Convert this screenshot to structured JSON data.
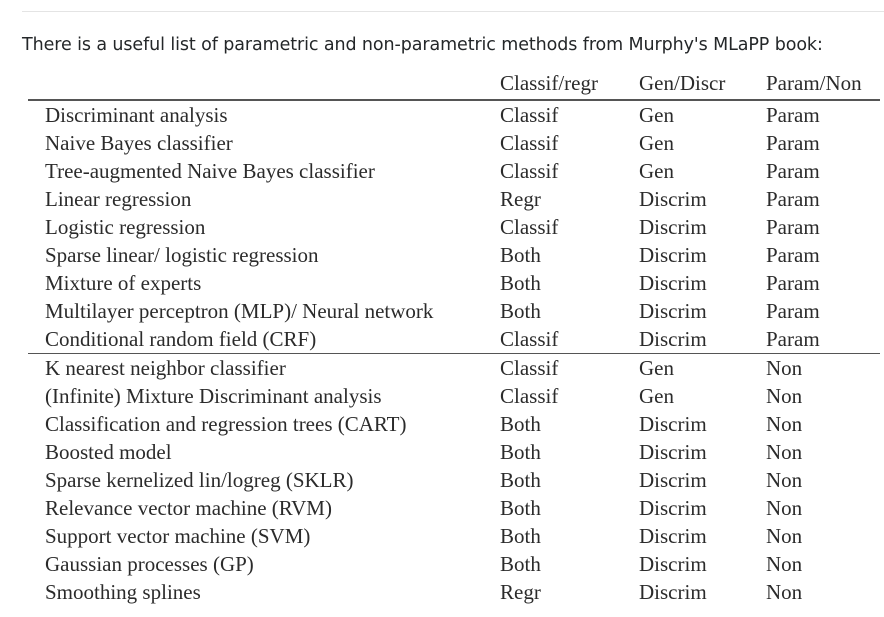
{
  "intro_text": "There is a useful list of parametric and non-parametric methods from Murphy's MLaPP book:",
  "table": {
    "headers": [
      "Classif/regr",
      "Gen/Discr",
      "Param/Non"
    ],
    "param_rows": [
      {
        "method": "Discriminant analysis",
        "classif": "Classif",
        "gen": "Gen",
        "param": "Param"
      },
      {
        "method": "Naive Bayes classifier",
        "classif": "Classif",
        "gen": "Gen",
        "param": "Param"
      },
      {
        "method": "Tree-augmented Naive Bayes classifier",
        "classif": "Classif",
        "gen": "Gen",
        "param": "Param"
      },
      {
        "method": "Linear regression",
        "classif": "Regr",
        "gen": "Discrim",
        "param": "Param"
      },
      {
        "method": "Logistic regression",
        "classif": "Classif",
        "gen": "Discrim",
        "param": "Param"
      },
      {
        "method": "Sparse linear/ logistic regression",
        "classif": "Both",
        "gen": "Discrim",
        "param": "Param"
      },
      {
        "method": "Mixture of experts",
        "classif": "Both",
        "gen": "Discrim",
        "param": "Param"
      },
      {
        "method": "Multilayer perceptron (MLP)/ Neural network",
        "classif": "Both",
        "gen": "Discrim",
        "param": "Param"
      },
      {
        "method": "Conditional random field (CRF)",
        "classif": "Classif",
        "gen": "Discrim",
        "param": "Param"
      }
    ],
    "nonparam_rows": [
      {
        "method": "K nearest neighbor classifier",
        "classif": "Classif",
        "gen": "Gen",
        "param": "Non"
      },
      {
        "method": "(Infinite) Mixture Discriminant analysis",
        "classif": "Classif",
        "gen": "Gen",
        "param": "Non"
      },
      {
        "method": "Classification and regression trees (CART)",
        "classif": "Both",
        "gen": "Discrim",
        "param": "Non"
      },
      {
        "method": "Boosted model",
        "classif": "Both",
        "gen": "Discrim",
        "param": "Non"
      },
      {
        "method": "Sparse kernelized lin/logreg (SKLR)",
        "classif": "Both",
        "gen": "Discrim",
        "param": "Non"
      },
      {
        "method": "Relevance vector machine (RVM)",
        "classif": "Both",
        "gen": "Discrim",
        "param": "Non"
      },
      {
        "method": "Support vector machine (SVM)",
        "classif": "Both",
        "gen": "Discrim",
        "param": "Non"
      },
      {
        "method": "Gaussian processes (GP)",
        "classif": "Both",
        "gen": "Discrim",
        "param": "Non"
      },
      {
        "method": "Smoothing splines",
        "classif": "Regr",
        "gen": "Discrim",
        "param": "Non"
      }
    ]
  }
}
